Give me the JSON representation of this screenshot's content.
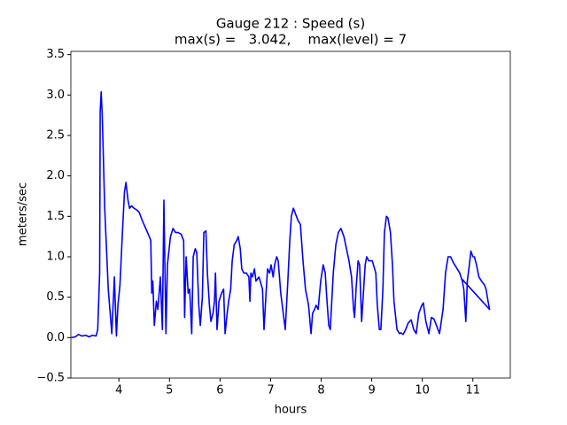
{
  "chart_data": {
    "type": "line",
    "title": "Gauge 212 : Speed (s)",
    "subtitle": "max(s) =   3.042,    max(level) = 7",
    "x_label": "hours",
    "y_label": "meters/sec",
    "x": [
      3.06,
      3.14,
      3.2,
      3.27,
      3.34,
      3.41,
      3.48,
      3.55,
      3.58,
      3.62,
      3.63,
      3.65,
      3.67,
      3.72,
      3.79,
      3.86,
      3.9,
      3.91,
      3.95,
      3.98,
      4.02,
      4.07,
      4.11,
      4.14,
      4.18,
      4.21,
      4.25,
      4.3,
      4.35,
      4.4,
      4.46,
      4.53,
      4.6,
      4.63,
      4.65,
      4.67,
      4.7,
      4.74,
      4.77,
      4.82,
      4.86,
      4.89,
      4.93,
      4.96,
      5.02,
      5.07,
      5.12,
      5.17,
      5.23,
      5.28,
      5.3,
      5.33,
      5.37,
      5.4,
      5.44,
      5.47,
      5.51,
      5.54,
      5.58,
      5.61,
      5.65,
      5.68,
      5.72,
      5.75,
      5.79,
      5.82,
      5.86,
      5.89,
      5.91,
      5.94,
      5.98,
      6.03,
      6.07,
      6.1,
      6.14,
      6.17,
      6.21,
      6.24,
      6.28,
      6.33,
      6.36,
      6.4,
      6.43,
      6.47,
      6.52,
      6.57,
      6.59,
      6.61,
      6.64,
      6.68,
      6.71,
      6.77,
      6.84,
      6.87,
      6.91,
      6.94,
      6.98,
      7.01,
      7.05,
      7.08,
      7.12,
      7.15,
      7.2,
      7.26,
      7.29,
      7.34,
      7.38,
      7.41,
      7.45,
      7.48,
      7.54,
      7.59,
      7.64,
      7.69,
      7.75,
      7.8,
      7.83,
      7.87,
      7.9,
      7.94,
      7.99,
      8.04,
      8.08,
      8.11,
      8.15,
      8.18,
      8.24,
      8.29,
      8.34,
      8.39,
      8.45,
      8.5,
      8.55,
      8.6,
      8.64,
      8.66,
      8.69,
      8.73,
      8.76,
      8.8,
      8.83,
      8.87,
      8.9,
      8.94,
      9.01,
      9.08,
      9.11,
      9.15,
      9.18,
      9.22,
      9.25,
      9.29,
      9.32,
      9.37,
      9.41,
      9.44,
      9.5,
      9.55,
      9.58,
      9.62,
      9.67,
      9.72,
      9.78,
      9.83,
      9.88,
      9.93,
      9.99,
      10.02,
      10.07,
      10.13,
      10.18,
      10.23,
      10.28,
      10.34,
      10.41,
      10.46,
      10.51,
      10.56,
      10.62,
      10.69,
      10.74,
      10.79,
      10.82,
      10.86,
      10.89,
      10.93,
      10.96,
      11.0,
      11.03,
      11.07,
      11.12,
      11.17,
      11.23,
      11.26,
      11.3,
      11.33,
      10.79
    ],
    "series": [
      {
        "color": "#0000ff",
        "values": [
          0.0,
          0.01,
          0.04,
          0.02,
          0.03,
          0.01,
          0.03,
          0.02,
          0.1,
          0.8,
          2.8,
          3.04,
          2.75,
          1.6,
          0.6,
          0.05,
          0.6,
          0.75,
          0.02,
          0.4,
          0.65,
          1.3,
          1.8,
          1.92,
          1.7,
          1.6,
          1.63,
          1.6,
          1.58,
          1.55,
          1.45,
          1.35,
          1.25,
          1.2,
          0.55,
          0.7,
          0.15,
          0.45,
          0.35,
          0.75,
          0.1,
          1.7,
          0.05,
          0.9,
          1.25,
          1.35,
          1.3,
          1.3,
          1.28,
          1.2,
          0.25,
          1.0,
          0.55,
          0.6,
          0.05,
          1.0,
          1.1,
          1.05,
          0.4,
          0.15,
          0.5,
          1.3,
          1.32,
          0.8,
          0.4,
          0.2,
          0.3,
          0.45,
          0.8,
          0.1,
          0.45,
          0.55,
          0.6,
          0.05,
          0.3,
          0.45,
          0.6,
          0.95,
          1.15,
          1.2,
          1.25,
          1.1,
          0.85,
          0.8,
          0.8,
          0.75,
          0.45,
          0.8,
          0.75,
          0.85,
          0.7,
          0.75,
          0.6,
          0.1,
          0.55,
          0.85,
          0.8,
          0.9,
          0.75,
          0.9,
          1.0,
          0.95,
          0.55,
          0.25,
          0.1,
          0.7,
          1.2,
          1.5,
          1.6,
          1.55,
          1.45,
          1.4,
          0.95,
          0.6,
          0.4,
          0.05,
          0.3,
          0.35,
          0.4,
          0.35,
          0.7,
          0.9,
          0.8,
          0.5,
          0.15,
          0.1,
          0.8,
          1.15,
          1.3,
          1.35,
          1.25,
          1.1,
          0.95,
          0.75,
          0.35,
          0.25,
          0.6,
          0.95,
          0.9,
          0.2,
          0.5,
          0.9,
          1.0,
          0.95,
          0.95,
          0.8,
          0.4,
          0.1,
          0.1,
          0.6,
          1.3,
          1.5,
          1.48,
          1.3,
          0.9,
          0.45,
          0.1,
          0.05,
          0.06,
          0.04,
          0.1,
          0.18,
          0.22,
          0.1,
          0.05,
          0.3,
          0.4,
          0.43,
          0.2,
          0.05,
          0.25,
          0.23,
          0.15,
          0.05,
          0.35,
          0.8,
          1.0,
          1.0,
          0.92,
          0.85,
          0.8,
          0.7,
          0.6,
          0.2,
          0.7,
          0.9,
          1.07,
          1.0,
          1.0,
          0.9,
          0.75,
          0.7,
          0.65,
          0.6,
          0.45,
          0.35,
          0.72
        ]
      }
    ],
    "xlim": [
      3.05,
      11.74
    ],
    "xticks": [
      4,
      5,
      6,
      7,
      8,
      9,
      10,
      11
    ],
    "ylim": [
      -0.5,
      3.54
    ],
    "yticks": [
      {
        "value": -0.5,
        "label": "−0.5"
      },
      {
        "value": 0,
        "label": "0.0"
      },
      0.5,
      {
        "value": 1,
        "label": "1.0"
      },
      1.5,
      {
        "value": 2,
        "label": "2.0"
      },
      2.5,
      {
        "value": 3,
        "label": "3.0"
      },
      3.5
    ]
  }
}
